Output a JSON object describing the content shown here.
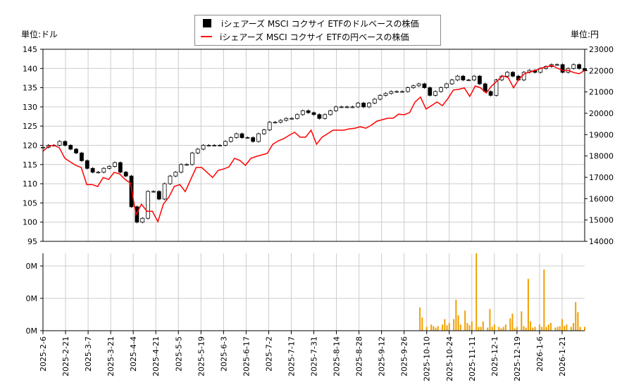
{
  "chart_data": [
    {
      "type": "candlestick+line",
      "title": "",
      "left_unit": "単位:ドル",
      "right_unit": "単位:円",
      "legend": [
        "iシェアーズ MSCI コクサイ ETFのドルベースの株価",
        "iシェアーズ MSCI コクサイ ETFの円ベースの株価"
      ],
      "legend_placement": "top-center",
      "ylim_left": [
        95,
        145
      ],
      "yticks_left": [
        "95",
        "100",
        "105",
        "110",
        "115",
        "120",
        "125",
        "130",
        "135",
        "140",
        "145"
      ],
      "ylim_right": [
        14000,
        23000
      ],
      "yticks_right": [
        "14000",
        "15000",
        "16000",
        "17000",
        "18000",
        "19000",
        "20000",
        "21000",
        "22000",
        "23000"
      ],
      "xlim": [
        0,
        240
      ],
      "xticks": [
        "2025-2-6",
        "2025-2-21",
        "2025-3-7",
        "2025-3-21",
        "2025-4-4",
        "2025-4-21",
        "2025-5-5",
        "2025-5-19",
        "2025-6-3",
        "2025-6-17",
        "2025-7-2",
        "2025-7-17",
        "2025-7-31",
        "2025-8-14",
        "2025-8-28",
        "2025-9-12",
        "2025-9-26",
        "2025-10-10",
        "2025-10-24",
        "2025-11-11",
        "2025-12-1",
        "2025-12-19",
        "2026-1-6",
        "2026-1-21"
      ],
      "usd_close": [
        119.5,
        120,
        120,
        121,
        120,
        119,
        118,
        116,
        114,
        113,
        113,
        114,
        114.5,
        115.5,
        113,
        112,
        104,
        100,
        101,
        108,
        108,
        106,
        110,
        112,
        113,
        115,
        115,
        118,
        119,
        120,
        120,
        120,
        120,
        121,
        122,
        123,
        122,
        122,
        121,
        123,
        124,
        126,
        126,
        126.5,
        127,
        127,
        128,
        129,
        128.5,
        128,
        127,
        128,
        129,
        130,
        130,
        130,
        130,
        131,
        130,
        131,
        132,
        133,
        133.5,
        134,
        134,
        134,
        135,
        135.5,
        136,
        135,
        133,
        134,
        135,
        136,
        137,
        138,
        137,
        137,
        138,
        136,
        134,
        133,
        137,
        138,
        139,
        138,
        137,
        139,
        139.5,
        139,
        140,
        140.5,
        141,
        141,
        139,
        140,
        141,
        140,
        139.5
      ],
      "jpy_line": [
        18220,
        18450,
        18510,
        18380,
        17890,
        17720,
        17560,
        17460,
        16660,
        16660,
        16570,
        16990,
        16900,
        17230,
        17160,
        16900,
        16730,
        15250,
        15740,
        15410,
        15410,
        14920,
        15740,
        16070,
        16570,
        16660,
        16330,
        16900,
        17460,
        17460,
        17230,
        16990,
        17320,
        17390,
        17490,
        17890,
        17790,
        17560,
        17890,
        17980,
        18050,
        18120,
        18550,
        18710,
        18810,
        18970,
        19110,
        18880,
        18880,
        19210,
        18550,
        18880,
        19040,
        19210,
        19210,
        19210,
        19270,
        19300,
        19370,
        19300,
        19440,
        19630,
        19700,
        19770,
        19770,
        19960,
        19930,
        20030,
        20530,
        20760,
        20200,
        20360,
        20530,
        20360,
        20690,
        21090,
        21120,
        21190,
        20790,
        21280,
        21190,
        20950,
        21280,
        21520,
        21750,
        21680,
        21190,
        21610,
        21850,
        21940,
        22010,
        22110,
        22180,
        22240,
        22110,
        22010,
        22010,
        21910,
        21850,
        22010
      ]
    },
    {
      "type": "bar",
      "ylabel": "",
      "yticks": [
        "0M",
        "0M",
        "0M"
      ],
      "xlim": [
        0,
        240
      ],
      "color": "#f0a000",
      "x": [
        167,
        168,
        170,
        172,
        173,
        174,
        175,
        177,
        178,
        179,
        180,
        182,
        183,
        184,
        185,
        187,
        188,
        189,
        190,
        192,
        193,
        194,
        195,
        197,
        198,
        199,
        200,
        202,
        203,
        204,
        205,
        207,
        208,
        209,
        210,
        212,
        213,
        214,
        215,
        216,
        217,
        218,
        220,
        221,
        222,
        223,
        224,
        225,
        227,
        228,
        229,
        230,
        231,
        232,
        234,
        235,
        236,
        237,
        238,
        240
      ],
      "values": [
        0.3,
        0.17,
        0.05,
        0.08,
        0.06,
        0.04,
        0.06,
        0.08,
        0.15,
        0.07,
        0.1,
        0.15,
        0.4,
        0.2,
        0.08,
        0.26,
        0.1,
        0.07,
        0.12,
        1.0,
        0.05,
        0.05,
        0.12,
        0.04,
        0.28,
        0.05,
        0.08,
        0.05,
        0.03,
        0.05,
        0.08,
        0.16,
        0.22,
        0.03,
        0.05,
        0.25,
        0.06,
        0.04,
        0.67,
        0.12,
        0.04,
        0.05,
        0.08,
        0.05,
        0.79,
        0.05,
        0.08,
        0.1,
        0.04,
        0.05,
        0.06,
        0.15,
        0.06,
        0.08,
        0.05,
        0.1,
        0.37,
        0.24,
        0.05,
        0.05
      ]
    }
  ]
}
